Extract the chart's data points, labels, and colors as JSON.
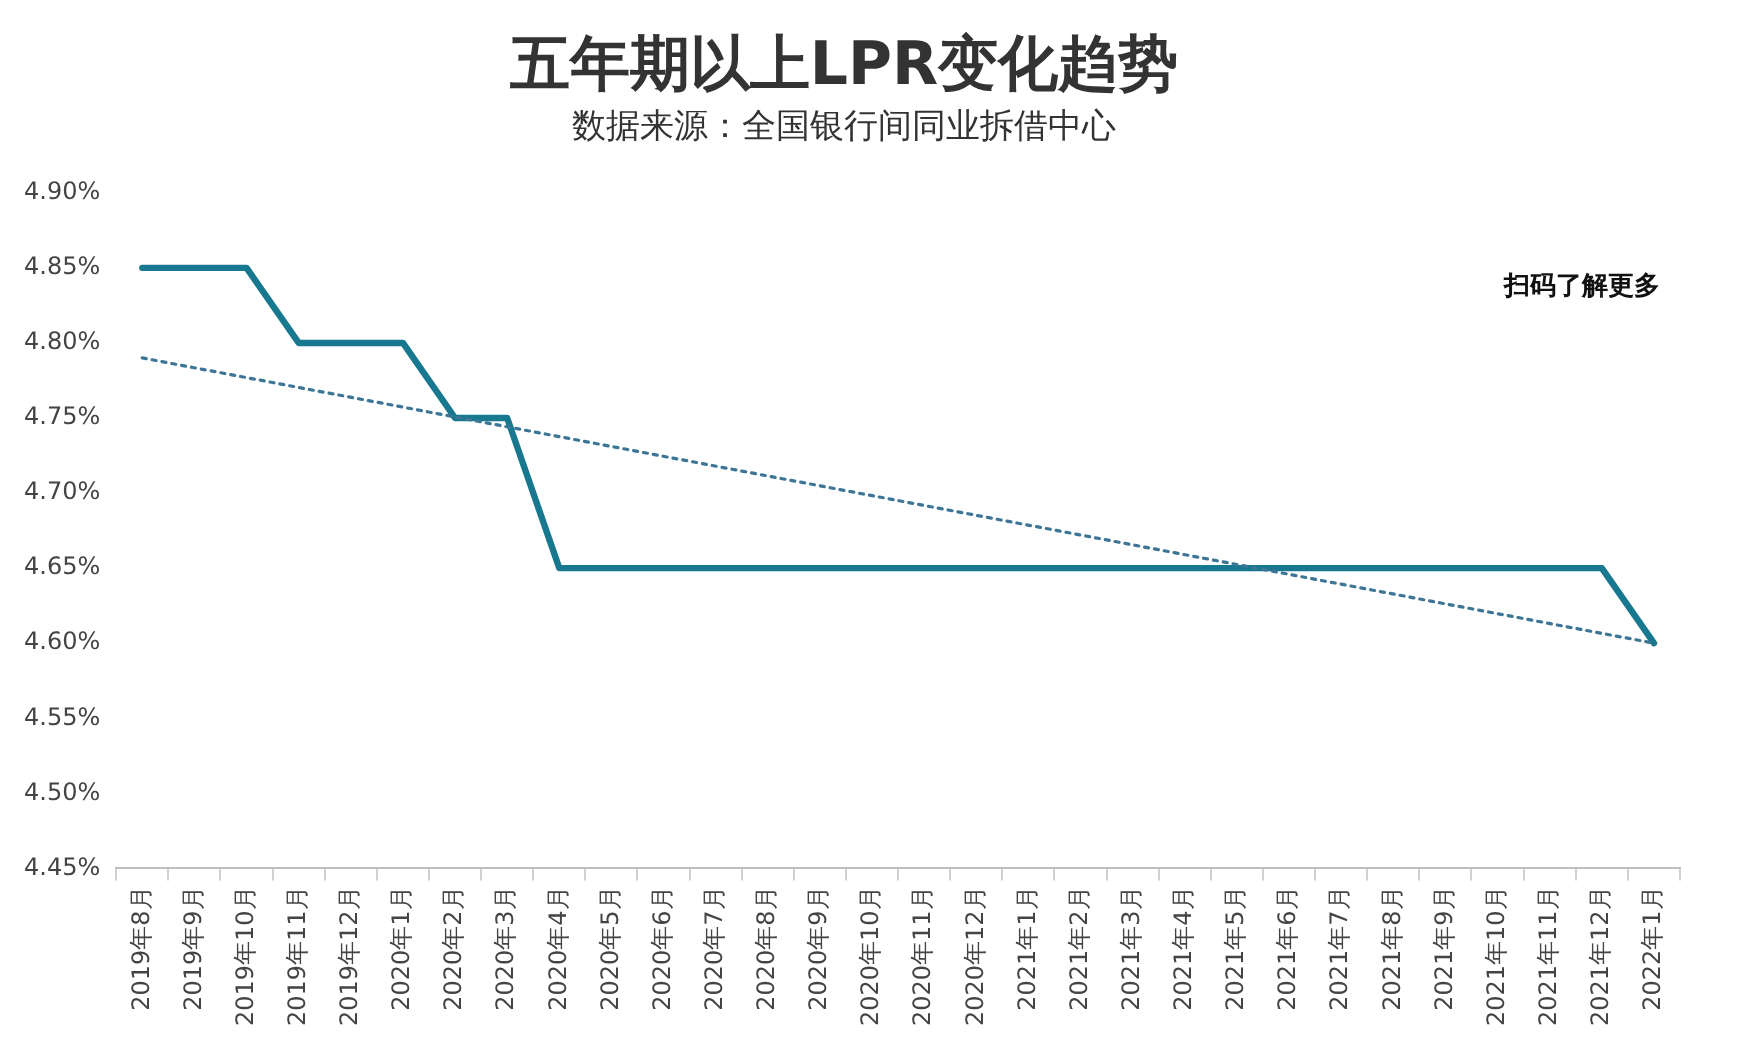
{
  "chart_data": {
    "type": "line",
    "title": "五年期以上LPR变化趋势",
    "subtitle": "数据来源：全国银行间同业拆借中心",
    "categories": [
      "2019年8月",
      "2019年9月",
      "2019年10月",
      "2019年11月",
      "2019年12月",
      "2020年1月",
      "2020年2月",
      "2020年3月",
      "2020年4月",
      "2020年5月",
      "2020年6月",
      "2020年7月",
      "2020年8月",
      "2020年9月",
      "2020年10月",
      "2020年11月",
      "2020年12月",
      "2021年1月",
      "2021年2月",
      "2021年3月",
      "2021年4月",
      "2021年5月",
      "2021年6月",
      "2021年7月",
      "2021年8月",
      "2021年9月",
      "2021年10月",
      "2021年11月",
      "2021年12月",
      "2022年1月"
    ],
    "series": [
      {
        "color": "#17788f",
        "values": [
          4.85,
          4.85,
          4.85,
          4.8,
          4.8,
          4.8,
          4.75,
          4.75,
          4.65,
          4.65,
          4.65,
          4.65,
          4.65,
          4.65,
          4.65,
          4.65,
          4.65,
          4.65,
          4.65,
          4.65,
          4.65,
          4.65,
          4.65,
          4.65,
          4.65,
          4.65,
          4.65,
          4.65,
          4.65,
          4.6
        ]
      },
      {
        "type": "line",
        "line_style": "dotted",
        "color": "#3d7596",
        "x": [
          "2019年8月",
          "2022年1月"
        ],
        "values": [
          4.79,
          4.6
        ]
      }
    ],
    "ylim": [
      4.45,
      4.9
    ],
    "yticks": [
      {
        "value": 4.45,
        "label": "4.45%"
      },
      {
        "value": 4.5,
        "label": "4.50%"
      },
      {
        "value": 4.55,
        "label": "4.55%"
      },
      {
        "value": 4.6,
        "label": "4.60%"
      },
      {
        "value": 4.65,
        "label": "4.65%"
      },
      {
        "value": 4.7,
        "label": "4.70%"
      },
      {
        "value": 4.75,
        "label": "4.75%"
      },
      {
        "value": 4.8,
        "label": "4.80%"
      },
      {
        "value": 4.85,
        "label": "4.85%"
      },
      {
        "value": 4.9,
        "label": "4.90%"
      }
    ],
    "grid": false,
    "legend": false,
    "marker": "none",
    "line_style": "solid",
    "annotations": [
      "扫码了解更多"
    ]
  }
}
